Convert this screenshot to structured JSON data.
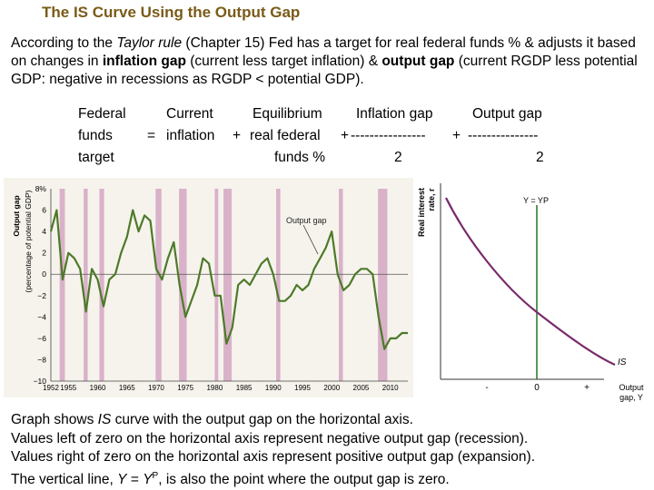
{
  "title": "The IS Curve Using the Output Gap",
  "intro": {
    "p1": "According to the ",
    "p2": "Taylor rule",
    "p3": " (Chapter 15) Fed has a target for real federal funds % & adjusts it based on changes in ",
    "p4": "inflation gap",
    "p5": " (current less target inflation) & ",
    "p6": "output gap",
    "p7": " (current RGDP less potential GDP: negative in recessions as RGDP < potential GDP)."
  },
  "equation": {
    "lhs1": "Federal",
    "lhs2": "funds",
    "lhs3": "target",
    "eq": "=",
    "t1a": "Current",
    "t1b": "inflation",
    "plus1": "+",
    "t2a": "Equilibrium",
    "t2b": "real federal",
    "t2c": "funds %",
    "plus2": "+",
    "t3a": "Inflation gap",
    "t3b": "----------------",
    "t3c": "2",
    "plus3": "+",
    "t4a": "Output gap",
    "t4b": "---------------",
    "t4c": "2"
  },
  "left_chart": {
    "ylabel1": "Output gap",
    "ylabel2": "(percentage of potential GDP)",
    "annotation": "Output gap",
    "yticks": [
      "8%",
      "6",
      "4",
      "2",
      "0",
      "−2",
      "−4",
      "−6",
      "−8",
      "−10"
    ],
    "xticks": [
      "1952",
      "1955",
      "1960",
      "1965",
      "1970",
      "1975",
      "1980",
      "1985",
      "1990",
      "1995",
      "2000",
      "2005",
      "2010"
    ]
  },
  "right_chart": {
    "ylabel1": "Real interest",
    "ylabel2": "rate, r",
    "vline_label": "Y = YP",
    "curve_label": "IS",
    "xlabel1": "Output",
    "xlabel2": "gap, Y",
    "xtick_minus": "-",
    "xtick_zero": "0",
    "xtick_plus": "+"
  },
  "chart_data": {
    "type": "line",
    "title": "",
    "xlabel": "",
    "ylabel": "Output gap (percentage of potential GDP)",
    "ylim": [
      -10,
      8
    ],
    "xlim": [
      1952,
      2013
    ],
    "recessions": [
      [
        1953.5,
        1954.4
      ],
      [
        1957.6,
        1958.3
      ],
      [
        1960.3,
        1961.1
      ],
      [
        1969.9,
        1970.9
      ],
      [
        1973.9,
        1975.2
      ],
      [
        1980.0,
        1980.6
      ],
      [
        1981.5,
        1982.9
      ],
      [
        1990.5,
        1991.2
      ],
      [
        2001.2,
        2001.9
      ],
      [
        2007.9,
        2009.5
      ]
    ],
    "series": [
      {
        "name": "Output gap",
        "x": [
          1952,
          1953,
          1954,
          1955,
          1956,
          1957,
          1958,
          1959,
          1960,
          1961,
          1962,
          1963,
          1964,
          1965,
          1966,
          1967,
          1968,
          1969,
          1970,
          1971,
          1972,
          1973,
          1974,
          1975,
          1976,
          1977,
          1978,
          1979,
          1980,
          1981,
          1982,
          1983,
          1984,
          1985,
          1986,
          1987,
          1988,
          1989,
          1990,
          1991,
          1992,
          1993,
          1994,
          1995,
          1996,
          1997,
          1998,
          1999,
          2000,
          2001,
          2002,
          2003,
          2004,
          2005,
          2006,
          2007,
          2008,
          2009,
          2010,
          2011,
          2012,
          2013
        ],
        "values": [
          4.0,
          6.0,
          -0.5,
          2.0,
          1.5,
          0.5,
          -3.5,
          0.5,
          -0.5,
          -3.0,
          -0.5,
          0.0,
          2.0,
          3.5,
          6.0,
          4.0,
          5.5,
          5.0,
          0.5,
          -0.5,
          1.5,
          3.0,
          -1.0,
          -4.0,
          -2.5,
          -1.0,
          1.5,
          1.0,
          -2.0,
          -2.0,
          -6.5,
          -5.0,
          -1.0,
          -0.5,
          -1.0,
          0.0,
          1.0,
          1.5,
          0.0,
          -2.5,
          -2.5,
          -2.0,
          -1.0,
          -1.5,
          -1.0,
          0.5,
          1.5,
          2.5,
          4.0,
          0.0,
          -1.5,
          -1.0,
          0.0,
          0.5,
          0.5,
          0.0,
          -4.0,
          -7.0,
          -6.0,
          -6.0,
          -5.5,
          -5.5
        ]
      }
    ]
  },
  "bottom": {
    "l1a": "Graph shows ",
    "l1b": "IS",
    "l1c": " curve with the output gap on the horizontal axis.",
    "l2": "Values left of zero on the horizontal axis represent negative output gap (recession).",
    "l3": "Values right of zero on the horizontal axis represent positive output gap (expansion).",
    "l4a": "The vertical line, ",
    "l4b": "Y",
    "l4c": " = ",
    "l4d": "Y",
    "l4e": "P",
    "l4f": ", is also the point where the output gap is zero."
  },
  "colors": {
    "title": "#7a5a17",
    "line": "#4d7a2a",
    "recession": "#d9b2c9",
    "is_curve": "#7a2a6a",
    "vline": "#2e7d32"
  }
}
